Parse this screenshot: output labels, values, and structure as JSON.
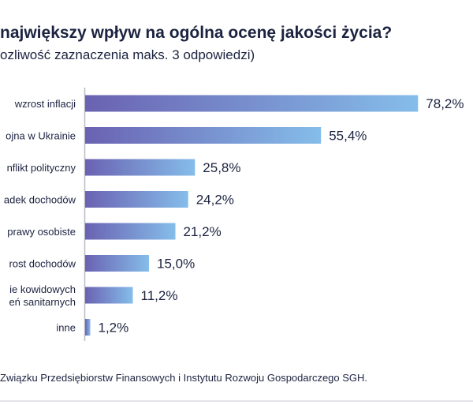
{
  "title": "największy wpływ na ogólna ocenę jakości życia?",
  "subtitle": "ozliwość zaznaczenia maks. 3 odpowiedzi)",
  "footer": "Związku Przedsiębiorstw Finansowych i Instytutu Rozwoju Gospodarczego SGH.",
  "colors": {
    "bar_start": "#6a62b2",
    "bar_end": "#85bdea",
    "axis": "#b9bac4",
    "text": "#1c2340"
  },
  "chart_data": {
    "type": "bar",
    "orientation": "horizontal",
    "categories": [
      [
        "wzrost inflacji"
      ],
      [
        "ojna w Ukrainie"
      ],
      [
        "nflikt polityczny"
      ],
      [
        "adek dochodów"
      ],
      [
        "prawy osobiste"
      ],
      [
        "rost dochodów"
      ],
      [
        "ie kowidowych",
        "eń sanitarnych"
      ],
      [
        "inne"
      ]
    ],
    "values": [
      78.2,
      55.4,
      25.8,
      24.2,
      21.2,
      15.0,
      11.2,
      1.2
    ],
    "value_labels": [
      "78,2%",
      "55,4%",
      "25,8%",
      "24,2%",
      "21,2%",
      "15,0%",
      "11,2%",
      "1,2%"
    ],
    "xlim": [
      0,
      100
    ],
    "grid": false,
    "legend": "none"
  }
}
